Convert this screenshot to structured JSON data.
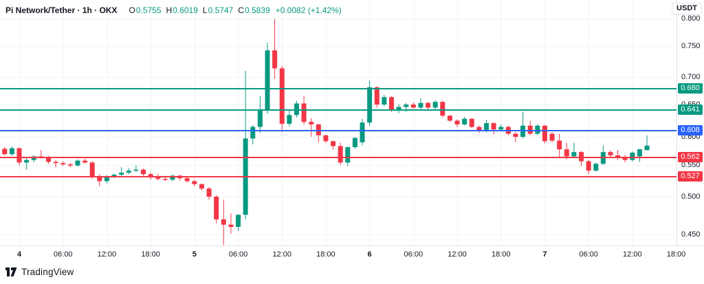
{
  "header": {
    "title": "Pi Network/Tether · 1h · OKX",
    "ohlc": [
      {
        "label": "O",
        "value": "0.5755"
      },
      {
        "label": "H",
        "value": "0.6019"
      },
      {
        "label": "L",
        "value": "0.5747"
      },
      {
        "label": "C",
        "value": "0.5839"
      }
    ],
    "change": "+0.0082 (+1.42%)"
  },
  "price_axis": {
    "currency": "USDT",
    "labels": [
      "0.800",
      "0.750",
      "0.700",
      "0.650",
      "0.600",
      "0.550",
      "0.500",
      "0.450"
    ]
  },
  "time_axis": {
    "labels": [
      {
        "label": "4",
        "t": 0,
        "day": true
      },
      {
        "label": "06:00",
        "t": 6
      },
      {
        "label": "12:00",
        "t": 12
      },
      {
        "label": "18:00",
        "t": 18
      },
      {
        "label": "5",
        "t": 24,
        "day": true
      },
      {
        "label": "06:00",
        "t": 30
      },
      {
        "label": "12:00",
        "t": 36
      },
      {
        "label": "18:00",
        "t": 42
      },
      {
        "label": "6",
        "t": 48,
        "day": true
      },
      {
        "label": "06:00",
        "t": 54
      },
      {
        "label": "12:00",
        "t": 60
      },
      {
        "label": "18:00",
        "t": 66
      },
      {
        "label": "7",
        "t": 72,
        "day": true
      },
      {
        "label": "06:00",
        "t": 78
      },
      {
        "label": "12:00",
        "t": 84
      },
      {
        "label": "18:00",
        "t": 90
      }
    ]
  },
  "branding": {
    "logo_text": "TradingView"
  },
  "colors": {
    "up": "#089981",
    "down": "#F23645",
    "blue": "#2962FF",
    "text": "#131722",
    "grid": "#f2f3f5",
    "border": "#e0e3eb"
  },
  "chart_data": {
    "type": "candlestick",
    "symbol": "Pi Network/Tether",
    "interval": "1h",
    "exchange": "OKX",
    "current_bar": {
      "open": 0.5755,
      "high": 0.6019,
      "low": 0.5747,
      "close": 0.5839
    },
    "y_range": [
      0.43,
      0.8
    ],
    "grid": true,
    "legend_position": "top-left",
    "levels": [
      {
        "price": "0.680",
        "value": 0.68,
        "color": "#089981"
      },
      {
        "price": "0.641",
        "value": 0.641,
        "color": "#089981"
      },
      {
        "price": "0.608",
        "value": 0.608,
        "color": "#2962FF"
      },
      {
        "price": "0.562",
        "value": 0.562,
        "color": "#F23645"
      },
      {
        "price": "0.527",
        "value": 0.527,
        "color": "#F23645"
      }
    ],
    "candles": [
      [
        -2,
        0.578,
        0.581,
        0.566,
        0.568
      ],
      [
        -1,
        0.568,
        0.582,
        0.565,
        0.579
      ],
      [
        0,
        0.579,
        0.58,
        0.549,
        0.554
      ],
      [
        1,
        0.554,
        0.562,
        0.541,
        0.558
      ],
      [
        2,
        0.558,
        0.566,
        0.554,
        0.564
      ],
      [
        3,
        0.564,
        0.576,
        0.56,
        0.562
      ],
      [
        4,
        0.562,
        0.565,
        0.552,
        0.555
      ],
      [
        5,
        0.555,
        0.558,
        0.545,
        0.553
      ],
      [
        6,
        0.553,
        0.556,
        0.548,
        0.551
      ],
      [
        7,
        0.551,
        0.553,
        0.546,
        0.549
      ],
      [
        8,
        0.549,
        0.559,
        0.547,
        0.557
      ],
      [
        9,
        0.557,
        0.56,
        0.552,
        0.554
      ],
      [
        10,
        0.554,
        0.556,
        0.524,
        0.527
      ],
      [
        11,
        0.527,
        0.532,
        0.514,
        0.521
      ],
      [
        12,
        0.521,
        0.53,
        0.518,
        0.528
      ],
      [
        13,
        0.528,
        0.533,
        0.525,
        0.531
      ],
      [
        14,
        0.531,
        0.546,
        0.528,
        0.535
      ],
      [
        15,
        0.535,
        0.544,
        0.532,
        0.539
      ],
      [
        16,
        0.539,
        0.549,
        0.536,
        0.541
      ],
      [
        17,
        0.541,
        0.543,
        0.529,
        0.532
      ],
      [
        18,
        0.532,
        0.535,
        0.523,
        0.526
      ],
      [
        19,
        0.526,
        0.532,
        0.522,
        0.524
      ],
      [
        20,
        0.524,
        0.529,
        0.521,
        0.523
      ],
      [
        21,
        0.523,
        0.531,
        0.521,
        0.529
      ],
      [
        22,
        0.529,
        0.531,
        0.522,
        0.525
      ],
      [
        23,
        0.525,
        0.528,
        0.519,
        0.521
      ],
      [
        24,
        0.521,
        0.523,
        0.514,
        0.517
      ],
      [
        25,
        0.517,
        0.518,
        0.508,
        0.511
      ],
      [
        26,
        0.511,
        0.513,
        0.496,
        0.5
      ],
      [
        27,
        0.5,
        0.502,
        0.465,
        0.47
      ],
      [
        28,
        0.47,
        0.496,
        0.4365,
        0.463
      ],
      [
        29,
        0.463,
        0.478,
        0.451,
        0.46
      ],
      [
        30,
        0.46,
        0.477,
        0.455,
        0.476
      ],
      [
        31,
        0.476,
        0.71,
        0.47,
        0.597
      ],
      [
        32,
        0.597,
        0.617,
        0.586,
        0.614
      ],
      [
        33,
        0.614,
        0.666,
        0.605,
        0.641
      ],
      [
        34,
        0.641,
        0.756,
        0.635,
        0.743
      ],
      [
        35,
        0.743,
        0.799,
        0.697,
        0.714
      ],
      [
        36,
        0.714,
        0.718,
        0.606,
        0.619
      ],
      [
        37,
        0.619,
        0.64,
        0.615,
        0.633
      ],
      [
        38,
        0.633,
        0.657,
        0.629,
        0.652
      ],
      [
        39,
        0.652,
        0.666,
        0.618,
        0.622
      ],
      [
        40,
        0.622,
        0.628,
        0.6,
        0.618
      ],
      [
        41,
        0.618,
        0.619,
        0.59,
        0.602
      ],
      [
        42,
        0.602,
        0.603,
        0.589,
        0.592
      ],
      [
        43,
        0.592,
        0.593,
        0.576,
        0.583
      ],
      [
        44,
        0.583,
        0.589,
        0.55,
        0.554
      ],
      [
        45,
        0.554,
        0.582,
        0.548,
        0.581
      ],
      [
        46,
        0.581,
        0.599,
        0.578,
        0.598
      ],
      [
        47,
        0.59,
        0.627,
        0.584,
        0.621
      ],
      [
        48,
        0.621,
        0.6945,
        0.6155,
        0.6825
      ],
      [
        49,
        0.6825,
        0.684,
        0.645,
        0.65
      ],
      [
        50,
        0.65,
        0.668,
        0.647,
        0.664
      ],
      [
        51,
        0.664,
        0.666,
        0.638,
        0.64
      ],
      [
        52,
        0.64,
        0.65,
        0.636,
        0.646
      ],
      [
        53,
        0.646,
        0.653,
        0.638,
        0.65
      ],
      [
        54,
        0.65,
        0.654,
        0.643,
        0.645
      ],
      [
        55,
        0.645,
        0.662,
        0.642,
        0.653
      ],
      [
        56,
        0.653,
        0.655,
        0.642,
        0.645
      ],
      [
        57,
        0.645,
        0.658,
        0.642,
        0.655
      ],
      [
        58,
        0.655,
        0.657,
        0.629,
        0.632
      ],
      [
        59,
        0.632,
        0.633,
        0.622,
        0.624
      ],
      [
        60,
        0.624,
        0.626,
        0.614,
        0.618
      ],
      [
        61,
        0.618,
        0.63,
        0.616,
        0.627
      ],
      [
        62,
        0.627,
        0.628,
        0.612,
        0.614
      ],
      [
        63,
        0.614,
        0.616,
        0.605,
        0.608
      ],
      [
        64,
        0.608,
        0.625,
        0.606,
        0.62
      ],
      [
        65,
        0.62,
        0.621,
        0.603,
        0.61
      ],
      [
        66,
        0.61,
        0.618,
        0.607,
        0.614
      ],
      [
        67,
        0.614,
        0.616,
        0.602,
        0.604
      ],
      [
        68,
        0.604,
        0.606,
        0.59,
        0.6
      ],
      [
        69,
        0.6,
        0.638,
        0.597,
        0.616
      ],
      [
        70,
        0.616,
        0.624,
        0.602,
        0.604
      ],
      [
        71,
        0.604,
        0.618,
        0.602,
        0.616
      ],
      [
        72,
        0.616,
        0.617,
        0.588,
        0.592
      ],
      [
        73,
        0.604,
        0.606,
        0.59,
        0.593
      ],
      [
        74,
        0.593,
        0.604,
        0.562,
        0.577
      ],
      [
        75,
        0.577,
        0.589,
        0.559,
        0.564
      ],
      [
        76,
        0.564,
        0.589,
        0.561,
        0.572
      ],
      [
        77,
        0.572,
        0.574,
        0.548,
        0.556
      ],
      [
        78,
        0.556,
        0.558,
        0.532,
        0.539
      ],
      [
        79,
        0.539,
        0.554,
        0.537,
        0.552
      ],
      [
        80,
        0.552,
        0.584,
        0.55,
        0.572
      ],
      [
        81,
        0.572,
        0.575,
        0.563,
        0.566
      ],
      [
        82,
        0.566,
        0.576,
        0.558,
        0.562
      ],
      [
        83,
        0.562,
        0.567,
        0.554,
        0.558
      ],
      [
        84,
        0.558,
        0.573,
        0.556,
        0.571
      ],
      [
        85,
        0.564,
        0.578,
        0.555,
        0.577
      ],
      [
        86,
        0.5755,
        0.6019,
        0.5747,
        0.5839
      ]
    ]
  }
}
